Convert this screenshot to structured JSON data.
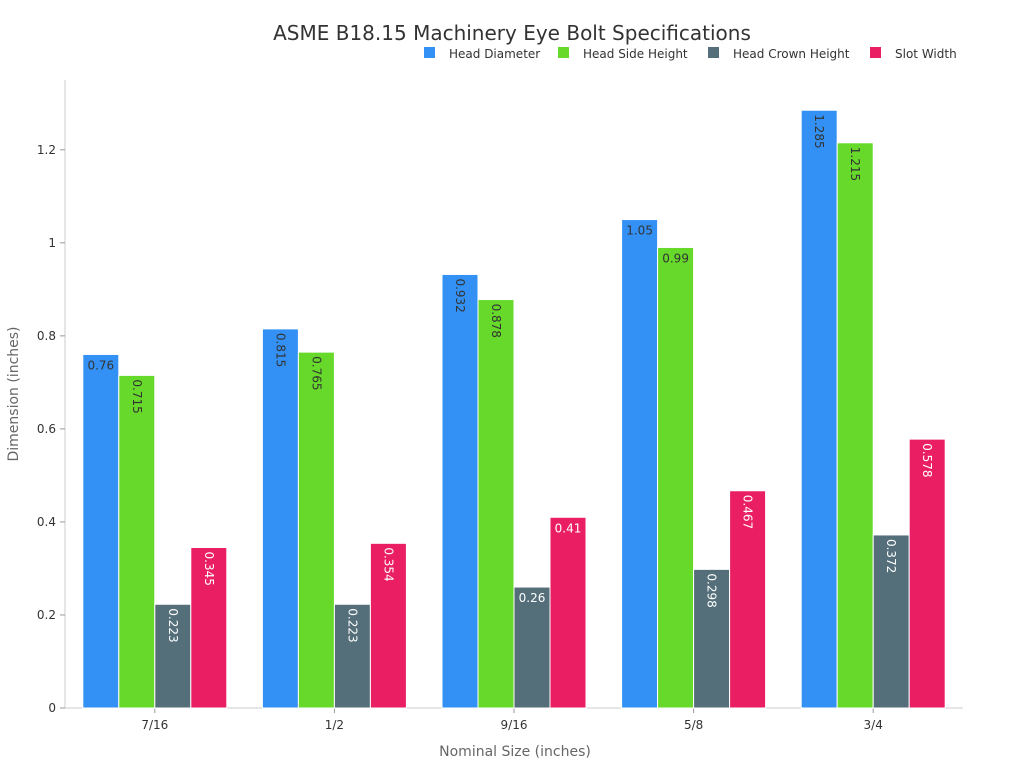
{
  "chart_data": {
    "type": "bar",
    "title": "ASME B18.15 Machinery Eye Bolt Specifications",
    "xlabel": "Nominal Size (inches)",
    "ylabel": "Dimension (inches)",
    "categories": [
      "7/16",
      "1/2",
      "9/16",
      "5/8",
      "3/4"
    ],
    "ylim": [
      0,
      1.35
    ],
    "yticks": [
      0,
      0.2,
      0.4,
      0.6,
      0.8,
      1,
      1.2
    ],
    "grid": false,
    "legend": "top-right",
    "series": [
      {
        "name": "Head Diameter",
        "color": "#3391f5",
        "label_color": "#333333",
        "values": [
          0.76,
          0.815,
          0.932,
          1.05,
          1.285
        ]
      },
      {
        "name": "Head Side Height",
        "color": "#66d92a",
        "label_color": "#333333",
        "values": [
          0.715,
          0.765,
          0.878,
          0.99,
          1.215
        ]
      },
      {
        "name": "Head Crown Height",
        "color": "#546e7a",
        "label_color": "#ffffff",
        "values": [
          0.223,
          0.223,
          0.26,
          0.298,
          0.372
        ]
      },
      {
        "name": "Slot Width",
        "color": "#e91e63",
        "label_color": "#ffffff",
        "values": [
          0.345,
          0.354,
          0.41,
          0.467,
          0.578
        ]
      }
    ]
  }
}
